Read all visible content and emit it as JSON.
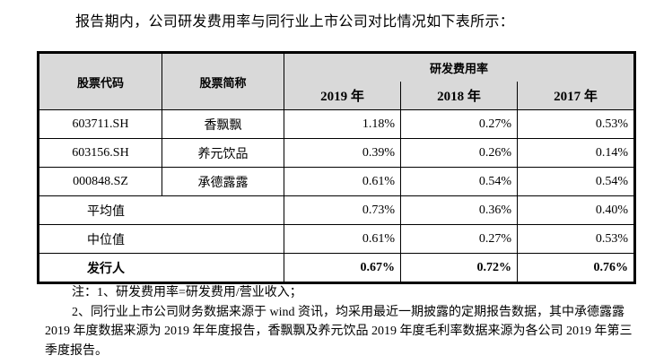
{
  "intro": "报告期内，公司研发费用率与同行业上市公司对比情况如下表所示：",
  "table": {
    "headers": {
      "code": "股票代码",
      "name": "股票简称",
      "group": "研发费用率",
      "years": [
        "2019 年",
        "2018 年",
        "2017 年"
      ]
    },
    "rows": [
      {
        "code": "603711.SH",
        "name": "香飘飘",
        "values": [
          "1.18%",
          "0.27%",
          "0.53%"
        ]
      },
      {
        "code": "603156.SH",
        "name": "养元饮品",
        "values": [
          "0.39%",
          "0.26%",
          "0.14%"
        ]
      },
      {
        "code": "000848.SZ",
        "name": "承德露露",
        "values": [
          "0.61%",
          "0.54%",
          "0.54%"
        ]
      }
    ],
    "summary": [
      {
        "label": "平均值",
        "values": [
          "0.73%",
          "0.36%",
          "0.40%"
        ]
      },
      {
        "label": "中位值",
        "values": [
          "0.61%",
          "0.27%",
          "0.53%"
        ]
      },
      {
        "label": "发行人",
        "values": [
          "0.67%",
          "0.72%",
          "0.76%"
        ]
      }
    ]
  },
  "notes": [
    "注：1、研发费用率=研发费用/营业收入；",
    "2、同行业上市公司财务数据来源于 wind 资讯，均采用最近一期披露的定期报告数据，其中承德露露 2019 年度数据来源为 2019 年年度报告，香飘飘及养元饮品 2019 年度毛利率数据来源为各公司 2019 年第三季度报告。"
  ]
}
